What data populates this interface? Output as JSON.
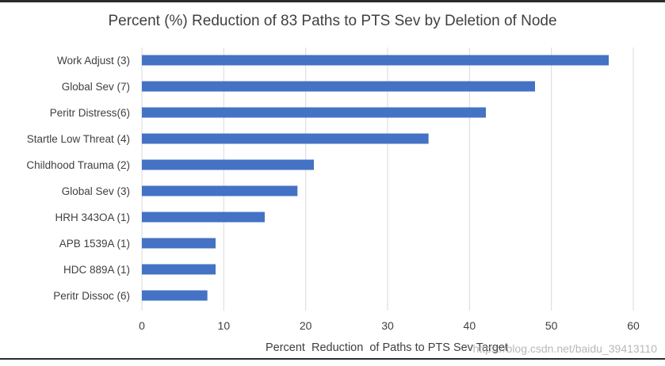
{
  "chart_data": {
    "type": "bar",
    "orientation": "horizontal",
    "title": "Percent (%) Reduction of 83 Paths to PTS Sev by Deletion of Node",
    "xlabel": "Percent  Reduction  of Paths to PTS Sev Target",
    "ylabel": "",
    "xlim": [
      0,
      60
    ],
    "xticks": [
      "0",
      "10",
      "20",
      "30",
      "40",
      "50",
      "60"
    ],
    "grid": true,
    "categories": [
      "Work Adjust (3)",
      "Global Sev (7)",
      "Peritr Distress(6)",
      "Startle Low Threat (4)",
      "Childhood Trauma (2)",
      "Global Sev (3)",
      "HRH 343OA (1)",
      "APB 1539A (1)",
      "HDC 889A (1)",
      "Peritr Dissoc (6)"
    ],
    "values": [
      57,
      48,
      42,
      35,
      21,
      19,
      15,
      9,
      9,
      8
    ],
    "bar_color": "#4472c4",
    "grid_color": "#d9d9d9"
  },
  "watermark": "https://blog.csdn.net/baidu_39413110"
}
